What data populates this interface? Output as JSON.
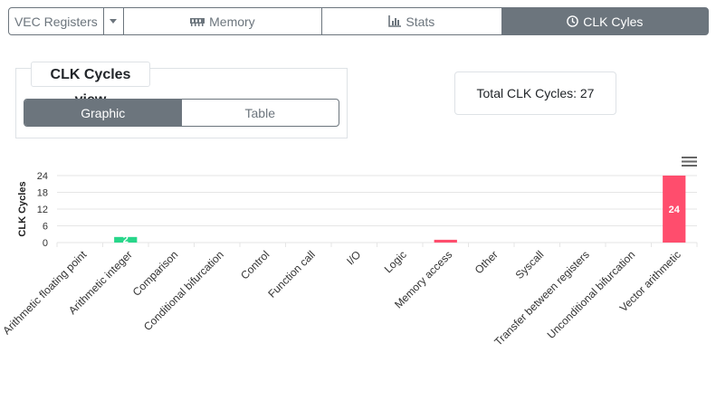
{
  "tabs": {
    "vec_label": "VEC Registers",
    "memory_label": "Memory",
    "stats_label": "Stats",
    "clk_label": "CLK Cyles"
  },
  "panel": {
    "title": "CLK Cycles view",
    "graphic_label": "Graphic",
    "table_label": "Table"
  },
  "total": {
    "text": "Total CLK Cycles: 27"
  },
  "colors": {
    "accent": "#6c757d",
    "green": "#28d68a",
    "red": "#ff4d6d"
  },
  "chart_data": {
    "type": "bar",
    "ylabel": "CLK Cycles",
    "ylim": [
      0,
      24
    ],
    "yticks": [
      0,
      6,
      12,
      18,
      24
    ],
    "categories": [
      "Arithmetic floating point",
      "Arithmetic integer",
      "Comparison",
      "Conditional bifurcation",
      "Control",
      "Function call",
      "I/O",
      "Logic",
      "Memory access",
      "Other",
      "Syscall",
      "Transfer between registers",
      "Unconditional bifurcation",
      "Vector arithmetic"
    ],
    "values": [
      0,
      2,
      0,
      0,
      0,
      0,
      0,
      0,
      1,
      0,
      0,
      0,
      0,
      24
    ],
    "bar_colors": [
      "#28d68a",
      "#28d68a",
      "#28d68a",
      "#28d68a",
      "#28d68a",
      "#28d68a",
      "#28d68a",
      "#28d68a",
      "#ff4d6d",
      "#28d68a",
      "#28d68a",
      "#28d68a",
      "#28d68a",
      "#ff4d6d"
    ],
    "data_labels": [
      "",
      "2",
      "",
      "",
      "",
      "",
      "",
      "",
      "",
      "",
      "",
      "",
      "",
      "24"
    ]
  }
}
